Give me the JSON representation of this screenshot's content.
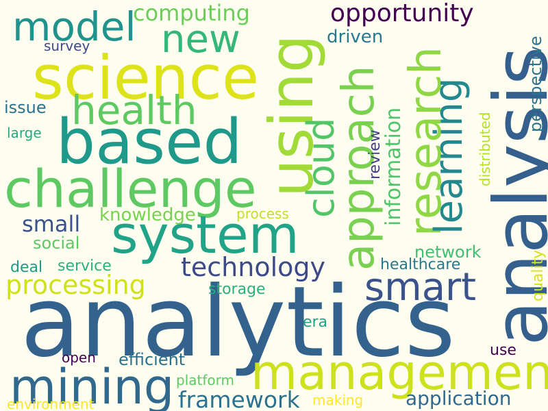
{
  "background_color": "#fdfdf0",
  "words": {
    "analytics": {
      "text": "analytics",
      "color": "#33628d"
    },
    "analysis": {
      "text": "analysis",
      "color": "#35608d"
    },
    "science": {
      "text": "science",
      "color": "#dde318"
    },
    "based": {
      "text": "based",
      "color": "#1f9a8a"
    },
    "using": {
      "text": "using",
      "color": "#a2da37"
    },
    "system": {
      "text": "system",
      "color": "#20a386"
    },
    "challenge": {
      "text": "challenge",
      "color": "#5ec962"
    },
    "management": {
      "text": "management",
      "color": "#cde11d"
    },
    "mining": {
      "text": "mining",
      "color": "#31688e"
    },
    "approach": {
      "text": "approach",
      "color": "#7ad151"
    },
    "research": {
      "text": "research",
      "color": "#8fd744"
    },
    "learning": {
      "text": "learning",
      "color": "#23898e"
    },
    "health": {
      "text": "health",
      "color": "#5ec962"
    },
    "model": {
      "text": "model",
      "color": "#20938c"
    },
    "new": {
      "text": "new",
      "color": "#35b779"
    },
    "smart": {
      "text": "smart",
      "color": "#3b528b"
    },
    "cloud": {
      "text": "cloud",
      "color": "#52c569"
    },
    "opportunity": {
      "text": "opportunity",
      "color": "#440154"
    },
    "computing": {
      "text": "computing",
      "color": "#6ccd5a"
    },
    "technology": {
      "text": "technology",
      "color": "#3e4989"
    },
    "processing": {
      "text": "processing",
      "color": "#d0e11c"
    },
    "information": {
      "text": "information",
      "color": "#50c46a"
    },
    "framework": {
      "text": "framework",
      "color": "#2c728e"
    },
    "small": {
      "text": "small",
      "color": "#3b528b"
    },
    "application": {
      "text": "application",
      "color": "#31688e"
    },
    "driven": {
      "text": "driven",
      "color": "#2a788e"
    },
    "knowledge": {
      "text": "knowledge",
      "color": "#7ad151"
    },
    "network": {
      "text": "network",
      "color": "#42be71"
    },
    "healthcare": {
      "text": "healthcare",
      "color": "#2a788e"
    },
    "social": {
      "text": "social",
      "color": "#5ec962"
    },
    "efficient": {
      "text": "efficient",
      "color": "#2d708e"
    },
    "perspective": {
      "text": "perspective",
      "color": "#2c738e"
    },
    "quality": {
      "text": "quality",
      "color": "#d8e219"
    },
    "storage": {
      "text": "storage",
      "color": "#2ab07f"
    },
    "distributed": {
      "text": "distributed",
      "color": "#b5de2b"
    },
    "review": {
      "text": "review",
      "color": "#433e85"
    },
    "issue": {
      "text": "issue",
      "color": "#2c728e"
    },
    "survey": {
      "text": "survey",
      "color": "#3e4989"
    },
    "service": {
      "text": "service",
      "color": "#2ab07f"
    },
    "deal": {
      "text": "deal",
      "color": "#1f9a8a"
    },
    "era": {
      "text": "era",
      "color": "#1fa187"
    },
    "platform": {
      "text": "platform",
      "color": "#5ec962"
    },
    "process": {
      "text": "process",
      "color": "#c2df23"
    },
    "large": {
      "text": "large",
      "color": "#23a983"
    },
    "open": {
      "text": "open",
      "color": "#440154"
    },
    "use": {
      "text": "use",
      "color": "#440154"
    },
    "making": {
      "text": "making",
      "color": "#fde725"
    },
    "environment": {
      "text": "environment",
      "color": "#fde725"
    }
  }
}
